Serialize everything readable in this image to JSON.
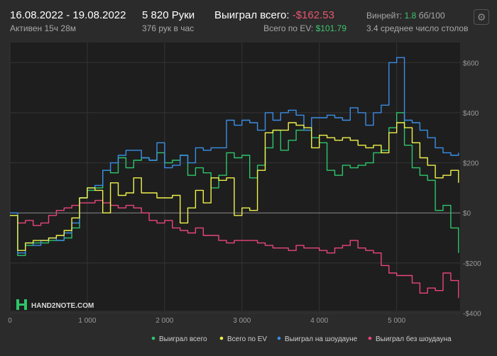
{
  "header": {
    "date_range": "16.08.2022 - 19.08.2022",
    "active": "Активен 15ч 28м",
    "hands": "5 820 Руки",
    "hands_per_hour": "376 рук в час",
    "won_label": "Выиграл всего:",
    "won_value": "-$162.53",
    "ev_label": "Всего по EV:",
    "ev_value": "$101.79",
    "winrate_label": "Винрейт:",
    "winrate_value": "1.8",
    "winrate_unit": "бб/100",
    "avg_tables": "3.4 среднее число столов"
  },
  "watermark": "HAND2NOTE.COM",
  "colors": {
    "background": "#2b2b2b",
    "plot_background": "#1e1e1e",
    "won_total": "#2ec56a",
    "ev_total": "#eef24a",
    "showdown": "#3a8de6",
    "non_showdown": "#e8457a",
    "negative_text": "#e8566f",
    "positive_text": "#3ec46d"
  },
  "chart_data": {
    "type": "line",
    "xlabel": "",
    "ylabel": "",
    "xlim": [
      0,
      5820
    ],
    "ylim": [
      -390,
      680
    ],
    "x_ticks": [
      0,
      1000,
      2000,
      3000,
      4000,
      5000
    ],
    "x_tick_labels": [
      "0",
      "1 000",
      "2 000",
      "3 000",
      "4 000",
      "5 000"
    ],
    "y_ticks": [
      600,
      400,
      200,
      0,
      -200,
      -400
    ],
    "y_tick_labels": [
      "$600",
      "$400",
      "$200",
      "$0",
      "-$200",
      "-$400"
    ],
    "legend_position": "bottom-right",
    "x": [
      0,
      100,
      200,
      300,
      400,
      500,
      600,
      700,
      800,
      900,
      1000,
      1100,
      1200,
      1300,
      1400,
      1500,
      1600,
      1700,
      1800,
      1900,
      2000,
      2100,
      2200,
      2300,
      2400,
      2500,
      2600,
      2700,
      2800,
      2900,
      3000,
      3100,
      3200,
      3300,
      3400,
      3500,
      3600,
      3700,
      3800,
      3900,
      4000,
      4100,
      4200,
      4300,
      4400,
      4500,
      4600,
      4700,
      4800,
      4900,
      5000,
      5100,
      5200,
      5300,
      5400,
      5500,
      5600,
      5700,
      5800
    ],
    "series": [
      {
        "name": "Выиграл всего",
        "values": [
          -10,
          -170,
          -130,
          -120,
          -120,
          -110,
          -110,
          -100,
          -60,
          60,
          90,
          100,
          170,
          160,
          220,
          180,
          210,
          220,
          210,
          240,
          200,
          210,
          230,
          150,
          180,
          160,
          100,
          150,
          240,
          220,
          230,
          140,
          190,
          260,
          330,
          250,
          290,
          330,
          330,
          300,
          280,
          170,
          150,
          190,
          180,
          190,
          200,
          240,
          250,
          340,
          400,
          270,
          180,
          150,
          130,
          10,
          30,
          -60,
          -160
        ]
      },
      {
        "name": "Всего по EV",
        "values": [
          -10,
          -150,
          -120,
          -110,
          -110,
          -100,
          -90,
          -70,
          -20,
          60,
          100,
          90,
          0,
          120,
          70,
          80,
          140,
          80,
          80,
          60,
          60,
          70,
          -40,
          20,
          90,
          40,
          140,
          130,
          140,
          -10,
          20,
          10,
          170,
          320,
          330,
          330,
          360,
          350,
          340,
          260,
          310,
          300,
          290,
          300,
          290,
          270,
          260,
          270,
          240,
          320,
          360,
          340,
          280,
          220,
          190,
          140,
          150,
          170,
          120
        ]
      },
      {
        "name": "Выиграл на шоудауне",
        "values": [
          0,
          -160,
          -120,
          -130,
          -110,
          -100,
          -110,
          -80,
          -40,
          60,
          100,
          110,
          170,
          200,
          230,
          250,
          250,
          220,
          210,
          280,
          180,
          190,
          230,
          200,
          260,
          250,
          260,
          260,
          370,
          350,
          370,
          360,
          330,
          400,
          370,
          400,
          410,
          390,
          330,
          380,
          380,
          390,
          380,
          370,
          420,
          400,
          350,
          400,
          430,
          600,
          620,
          370,
          360,
          330,
          300,
          260,
          240,
          230,
          240
        ]
      },
      {
        "name": "Выиграл без шоудауна",
        "values": [
          -10,
          -40,
          -30,
          -50,
          -40,
          -10,
          10,
          20,
          30,
          40,
          40,
          50,
          40,
          30,
          20,
          30,
          20,
          0,
          -30,
          -40,
          -30,
          -60,
          -70,
          -80,
          -60,
          -90,
          -90,
          -110,
          -120,
          -110,
          -110,
          -110,
          -120,
          -130,
          -140,
          -140,
          -150,
          -130,
          -140,
          -140,
          -150,
          -160,
          -140,
          -130,
          -110,
          -140,
          -150,
          -160,
          -210,
          -240,
          -250,
          -250,
          -280,
          -320,
          -300,
          -310,
          -240,
          -270,
          -340
        ]
      }
    ]
  }
}
